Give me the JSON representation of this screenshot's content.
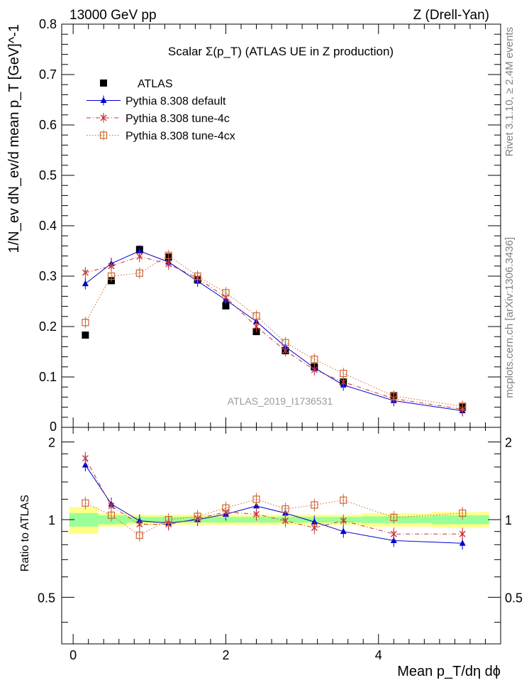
{
  "header": {
    "left": "13000 GeV pp",
    "right": "Z (Drell-Yan)"
  },
  "side_labels": {
    "rivet": "Rivet 3.1.10, ≥ 2.4M events",
    "mcplots": "mcplots.cern.ch [arXiv:1306.3436]"
  },
  "chart_data": {
    "type": "scatter",
    "title": "Scalar Σ(p_T) (ATLAS UE in Z production)",
    "watermark": "ATLAS_2019_I1736531",
    "xlabel": "Mean p_T/dη dϕ",
    "ylabel": "1/N_ev dN_ev/d mean p_T [GeV]^-1",
    "ratio_ylabel": "Ratio to ATLAS",
    "xlim": [
      -0.15,
      5.6
    ],
    "ylim": [
      0,
      0.8
    ],
    "ratio_ylim": [
      0.33,
      2.28
    ],
    "xticks_major": [
      0,
      2,
      4
    ],
    "yticks_major": [
      0.1,
      0.2,
      0.3,
      0.4,
      0.5,
      0.6,
      0.7,
      0.8
    ],
    "ratio_yticks": [
      0.5,
      1,
      2
    ],
    "legend_position": "top-left",
    "x": [
      0.16,
      0.5,
      0.87,
      1.25,
      1.63,
      2.0,
      2.4,
      2.78,
      3.16,
      3.54,
      4.2,
      5.1
    ],
    "series": [
      {
        "name": "ATLAS",
        "style": "data",
        "color": "#000000",
        "values": [
          0.183,
          0.291,
          0.353,
          0.338,
          0.293,
          0.241,
          0.19,
          0.152,
          0.12,
          0.09,
          0.063,
          0.04
        ],
        "ratio": [
          1,
          1,
          1,
          1,
          1,
          1,
          1,
          1,
          1,
          1,
          1,
          1
        ]
      },
      {
        "name": "Pythia 8.308 default",
        "style": "solid-triangle",
        "color": "#0000cc",
        "values": [
          0.285,
          0.325,
          0.35,
          0.328,
          0.29,
          0.253,
          0.21,
          0.16,
          0.118,
          0.084,
          0.053,
          0.033
        ],
        "ratio": [
          1.63,
          1.15,
          0.99,
          0.97,
          1.0,
          1.05,
          1.13,
          1.06,
          0.98,
          0.9,
          0.83,
          0.81
        ]
      },
      {
        "name": "Pythia 8.308 tune-4c",
        "style": "dashdot-star",
        "color": "#cc3333",
        "values": [
          0.307,
          0.32,
          0.339,
          0.324,
          0.296,
          0.258,
          0.2,
          0.152,
          0.114,
          0.09,
          0.057,
          0.036
        ],
        "ratio": [
          1.73,
          1.13,
          0.96,
          0.96,
          1.01,
          1.07,
          1.05,
          0.99,
          0.93,
          0.99,
          0.88,
          0.88
        ]
      },
      {
        "name": "Pythia 8.308 tune-4cx",
        "style": "dotted-open-square",
        "color": "#cc6633",
        "values": [
          0.208,
          0.3,
          0.306,
          0.341,
          0.3,
          0.267,
          0.221,
          0.168,
          0.135,
          0.107,
          0.062,
          0.042
        ],
        "ratio": [
          1.16,
          1.04,
          0.87,
          1.0,
          1.03,
          1.11,
          1.2,
          1.1,
          1.14,
          1.19,
          1.02,
          1.06
        ]
      }
    ],
    "bands": {
      "bins": [
        [
          -0.05,
          0.33
        ],
        [
          0.33,
          0.7
        ],
        [
          0.7,
          1.07
        ],
        [
          1.07,
          1.45
        ],
        [
          1.45,
          1.82
        ],
        [
          1.82,
          2.2
        ],
        [
          2.2,
          2.6
        ],
        [
          2.6,
          2.97
        ],
        [
          2.97,
          3.35
        ],
        [
          3.35,
          3.78
        ],
        [
          3.78,
          4.7
        ],
        [
          4.7,
          5.45
        ]
      ],
      "green_halfwidth": [
        0.06,
        0.04,
        0.025,
        0.025,
        0.025,
        0.025,
        0.025,
        0.025,
        0.025,
        0.025,
        0.03,
        0.04
      ],
      "yellow_halfwidth": [
        0.12,
        0.06,
        0.045,
        0.045,
        0.045,
        0.045,
        0.045,
        0.045,
        0.045,
        0.045,
        0.06,
        0.07
      ],
      "green_color": "#99ff99",
      "yellow_color": "#ffff88"
    }
  }
}
